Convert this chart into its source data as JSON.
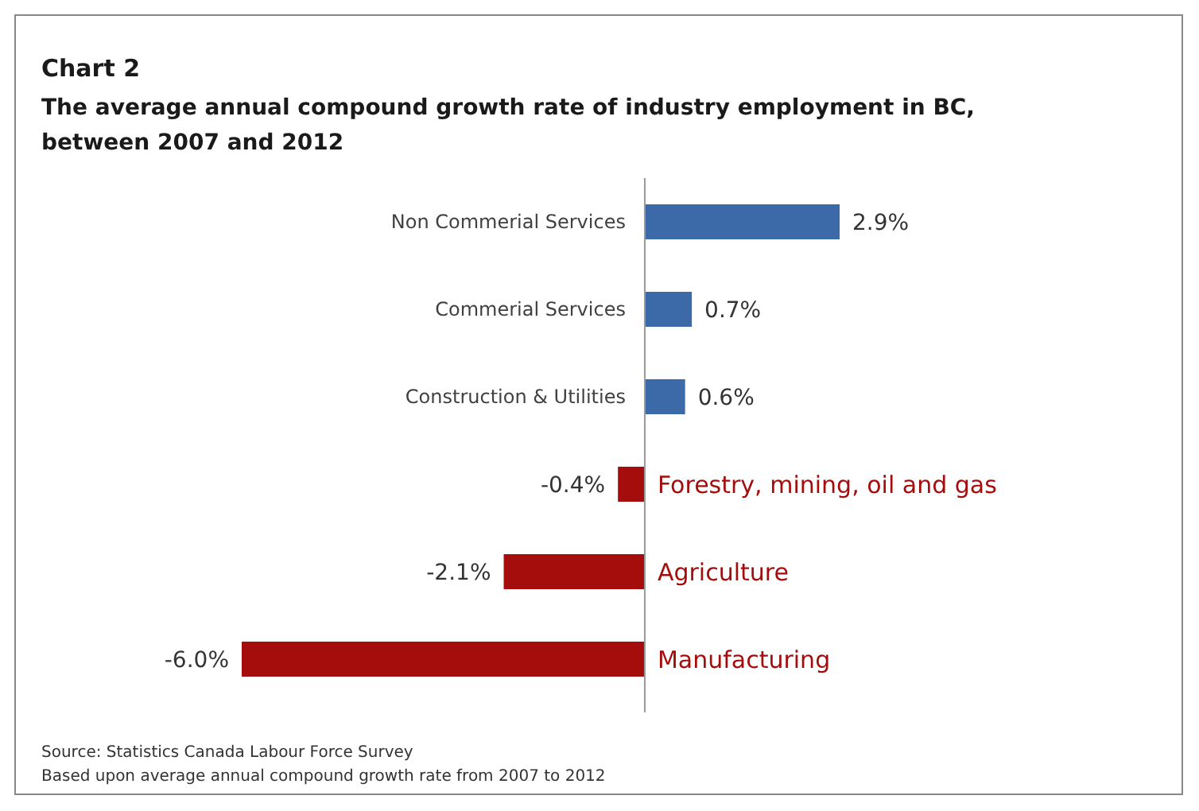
{
  "chart_data": {
    "type": "bar",
    "orientation": "horizontal",
    "title": "Chart 2",
    "subtitle": "The average annual compound growth rate of industry employment in BC, between 2007 and 2012",
    "categories": [
      "Non Commerial Services",
      "Commerial Services",
      "Construction & Utilities",
      "Forestry, mining, oil and gas",
      "Agriculture",
      "Manufacturing"
    ],
    "values": [
      2.9,
      0.7,
      0.6,
      -0.4,
      -2.1,
      -6.0
    ],
    "colors": [
      "#3c6aa8",
      "#3c6aa8",
      "#3c6aa8",
      "#a50d0d",
      "#a50d0d",
      "#a50d0d"
    ],
    "value_labels": [
      "2.9%",
      "0.7%",
      "0.6%",
      "-0.4%",
      "-2.1%",
      "-6.0%"
    ],
    "annotations": [
      "Source: Statistics Canada Labour Force Survey",
      "Based upon average annual compound growth rate from 2007 to 2012"
    ]
  }
}
